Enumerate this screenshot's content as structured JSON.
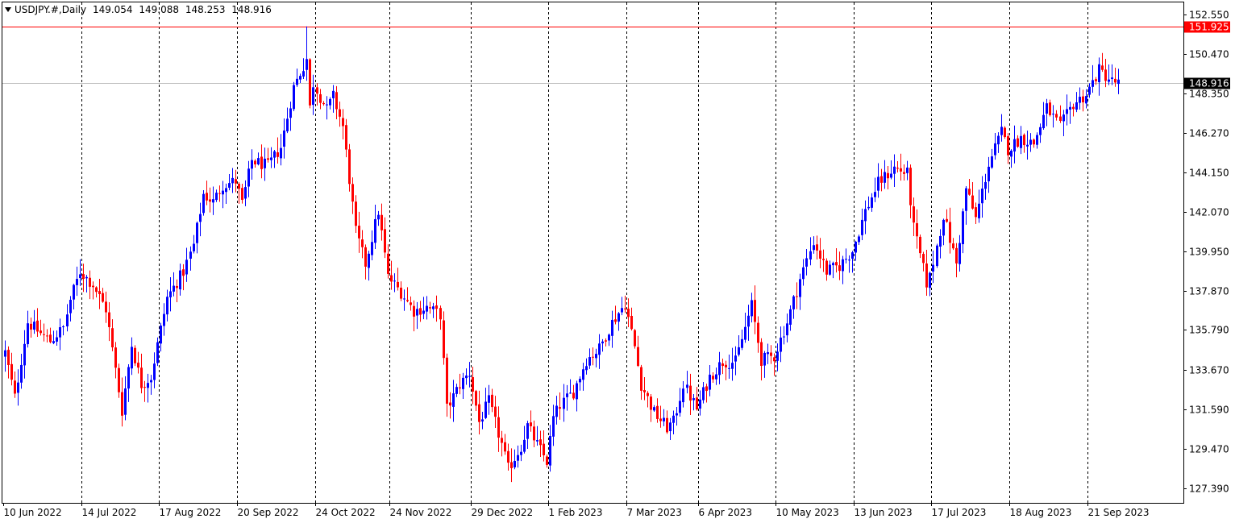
{
  "header": {
    "symbol": "USDJPY.#,Daily",
    "open": "149.054",
    "high": "149.088",
    "low": "148.253",
    "close": "148.916"
  },
  "colors": {
    "bull": "#0000ff",
    "bear": "#ff0000",
    "grid": "#000000",
    "price_line": "#c0c0c0",
    "alert_line": "#ff0000",
    "bid_label_bg": "#000000",
    "alert_label_bg": "#ff0000"
  },
  "chart_data": {
    "type": "candlestick",
    "symbol": "USDJPY.#",
    "timeframe": "Daily",
    "ylim": [
      126.6,
      153.2
    ],
    "y_ticks": [
      "152.550",
      "150.470",
      "148.350",
      "146.270",
      "144.150",
      "142.070",
      "139.950",
      "137.870",
      "135.790",
      "133.670",
      "131.590",
      "129.470",
      "127.390"
    ],
    "x_ticks": [
      "10 Jun 2022",
      "14 Jul 2022",
      "17 Aug 2022",
      "20 Sep 2022",
      "24 Oct 2022",
      "24 Nov 2022",
      "29 Dec 2022",
      "1 Feb 2023",
      "7 Mar 2023",
      "6 Apr 2023",
      "10 May 2023",
      "13 Jun 2023",
      "17 Jul 2023",
      "18 Aug 2023",
      "21 Sep 2023"
    ],
    "bid_label": "148.916",
    "bid_price": 148.916,
    "alert_label": "151.925",
    "alert_price": 151.925,
    "close_path": [
      {
        "date": "10 Jun 2022",
        "close": 134.4
      },
      {
        "date": "13 Jun 2022",
        "close": 134.6
      },
      {
        "date": "16 Jun 2022",
        "close": 132.2
      },
      {
        "date": "22 Jun 2022",
        "close": 136.2
      },
      {
        "date": "28 Jun 2022",
        "close": 135.6
      },
      {
        "date": "1 Jul 2022",
        "close": 135.2
      },
      {
        "date": "7 Jul 2022",
        "close": 135.9
      },
      {
        "date": "11 Jul 2022",
        "close": 137.4
      },
      {
        "date": "14 Jul 2022",
        "close": 138.9
      },
      {
        "date": "20 Jul 2022",
        "close": 138.2
      },
      {
        "date": "26 Jul 2022",
        "close": 136.9
      },
      {
        "date": "2 Aug 2022",
        "close": 131.5
      },
      {
        "date": "5 Aug 2022",
        "close": 135.0
      },
      {
        "date": "10 Aug 2022",
        "close": 132.9
      },
      {
        "date": "15 Aug 2022",
        "close": 133.3
      },
      {
        "date": "17 Aug 2022",
        "close": 135.0
      },
      {
        "date": "22 Aug 2022",
        "close": 137.5
      },
      {
        "date": "29 Aug 2022",
        "close": 138.9
      },
      {
        "date": "1 Sep 2022",
        "close": 140.3
      },
      {
        "date": "6 Sep 2022",
        "close": 143.0
      },
      {
        "date": "9 Sep 2022",
        "close": 142.6
      },
      {
        "date": "14 Sep 2022",
        "close": 143.5
      },
      {
        "date": "20 Sep 2022",
        "close": 143.7
      },
      {
        "date": "22 Sep 2022",
        "close": 142.5
      },
      {
        "date": "27 Sep 2022",
        "close": 144.8
      },
      {
        "date": "4 Oct 2022",
        "close": 144.5
      },
      {
        "date": "10 Oct 2022",
        "close": 145.5
      },
      {
        "date": "14 Oct 2022",
        "close": 148.7
      },
      {
        "date": "20 Oct 2022",
        "close": 150.2
      },
      {
        "date": "21 Oct 2022",
        "close": 147.6
      },
      {
        "date": "24 Oct 2022",
        "close": 148.9
      },
      {
        "date": "28 Oct 2022",
        "close": 147.5
      },
      {
        "date": "1 Nov 2022",
        "close": 148.2
      },
      {
        "date": "4 Nov 2022",
        "close": 146.6
      },
      {
        "date": "10 Nov 2022",
        "close": 141.0
      },
      {
        "date": "15 Nov 2022",
        "close": 139.3
      },
      {
        "date": "21 Nov 2022",
        "close": 142.1
      },
      {
        "date": "24 Nov 2022",
        "close": 138.6
      },
      {
        "date": "30 Nov 2022",
        "close": 137.8
      },
      {
        "date": "6 Dec 2022",
        "close": 136.8
      },
      {
        "date": "12 Dec 2022",
        "close": 137.0
      },
      {
        "date": "16 Dec 2022",
        "close": 136.6
      },
      {
        "date": "20 Dec 2022",
        "close": 131.6
      },
      {
        "date": "26 Dec 2022",
        "close": 132.9
      },
      {
        "date": "29 Dec 2022",
        "close": 133.5
      },
      {
        "date": "3 Jan 2023",
        "close": 130.9
      },
      {
        "date": "6 Jan 2023",
        "close": 132.0
      },
      {
        "date": "12 Jan 2023",
        "close": 129.7
      },
      {
        "date": "16 Jan 2023",
        "close": 128.4
      },
      {
        "date": "20 Jan 2023",
        "close": 129.6
      },
      {
        "date": "24 Jan 2023",
        "close": 130.7
      },
      {
        "date": "27 Jan 2023",
        "close": 129.7
      },
      {
        "date": "1 Feb 2023",
        "close": 128.8
      },
      {
        "date": "3 Feb 2023",
        "close": 131.1
      },
      {
        "date": "7 Feb 2023",
        "close": 131.8
      },
      {
        "date": "13 Feb 2023",
        "close": 132.5
      },
      {
        "date": "17 Feb 2023",
        "close": 134.2
      },
      {
        "date": "23 Feb 2023",
        "close": 134.8
      },
      {
        "date": "1 Mar 2023",
        "close": 136.2
      },
      {
        "date": "7 Mar 2023",
        "close": 137.2
      },
      {
        "date": "10 Mar 2023",
        "close": 134.9
      },
      {
        "date": "14 Mar 2023",
        "close": 132.9
      },
      {
        "date": "20 Mar 2023",
        "close": 131.4
      },
      {
        "date": "24 Mar 2023",
        "close": 130.6
      },
      {
        "date": "28 Mar 2023",
        "close": 130.9
      },
      {
        "date": "31 Mar 2023",
        "close": 132.9
      },
      {
        "date": "6 Apr 2023",
        "close": 131.6
      },
      {
        "date": "12 Apr 2023",
        "close": 133.3
      },
      {
        "date": "18 Apr 2023",
        "close": 134.1
      },
      {
        "date": "24 Apr 2023",
        "close": 134.1
      },
      {
        "date": "1 May 2023",
        "close": 137.1
      },
      {
        "date": "4 May 2023",
        "close": 134.2
      },
      {
        "date": "10 May 2023",
        "close": 134.4
      },
      {
        "date": "16 May 2023",
        "close": 136.2
      },
      {
        "date": "22 May 2023",
        "close": 138.5
      },
      {
        "date": "26 May 2023",
        "close": 140.5
      },
      {
        "date": "1 Jun 2023",
        "close": 138.9
      },
      {
        "date": "7 Jun 2023",
        "close": 139.2
      },
      {
        "date": "13 Jun 2023",
        "close": 140.0
      },
      {
        "date": "19 Jun 2023",
        "close": 142.1
      },
      {
        "date": "23 Jun 2023",
        "close": 143.6
      },
      {
        "date": "30 Jun 2023",
        "close": 144.4
      },
      {
        "date": "6 Jul 2023",
        "close": 144.1
      },
      {
        "date": "10 Jul 2023",
        "close": 141.2
      },
      {
        "date": "14 Jul 2023",
        "close": 138.3
      },
      {
        "date": "17 Jul 2023",
        "close": 138.6
      },
      {
        "date": "21 Jul 2023",
        "close": 141.9
      },
      {
        "date": "27 Jul 2023",
        "close": 139.3
      },
      {
        "date": "1 Aug 2023",
        "close": 143.3
      },
      {
        "date": "4 Aug 2023",
        "close": 141.7
      },
      {
        "date": "10 Aug 2023",
        "close": 144.6
      },
      {
        "date": "16 Aug 2023",
        "close": 146.3
      },
      {
        "date": "18 Aug 2023",
        "close": 145.4
      },
      {
        "date": "24 Aug 2023",
        "close": 146.0
      },
      {
        "date": "30 Aug 2023",
        "close": 145.7
      },
      {
        "date": "5 Sep 2023",
        "close": 147.6
      },
      {
        "date": "11 Sep 2023",
        "close": 146.6
      },
      {
        "date": "15 Sep 2023",
        "close": 147.8
      },
      {
        "date": "21 Sep 2023",
        "close": 148.3
      },
      {
        "date": "27 Sep 2023",
        "close": 149.6
      },
      {
        "date": "3 Oct 2023",
        "close": 149.0
      },
      {
        "date": "5 Oct 2023",
        "close": 148.9
      }
    ]
  }
}
